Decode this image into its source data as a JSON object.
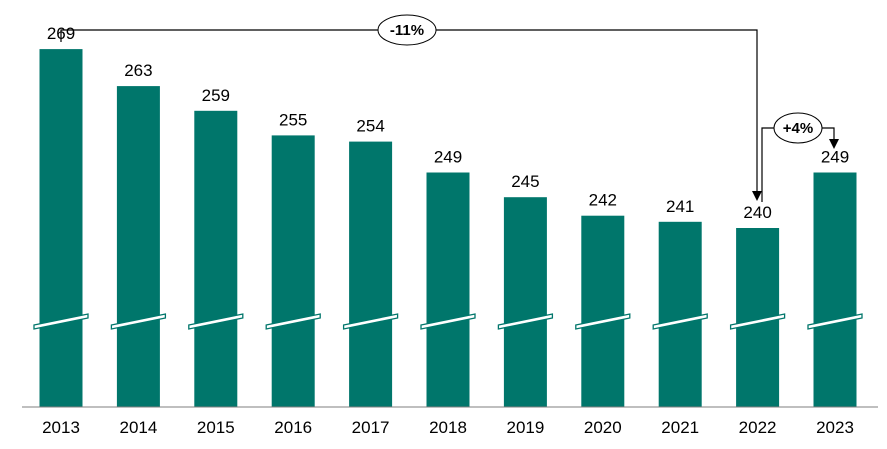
{
  "chart_data": {
    "type": "bar",
    "categories": [
      "2013",
      "2014",
      "2015",
      "2016",
      "2017",
      "2018",
      "2019",
      "2020",
      "2021",
      "2022",
      "2023"
    ],
    "values": [
      269,
      263,
      259,
      255,
      254,
      249,
      245,
      242,
      241,
      240,
      249
    ],
    "axis_break": true,
    "title": "",
    "xlabel": "",
    "ylabel": "",
    "annotations": [
      {
        "label": "-11%",
        "from": "2013",
        "to": "2022"
      },
      {
        "label": "+4%",
        "from": "2022",
        "to": "2023"
      }
    ]
  },
  "colors": {
    "bar": "#00766b",
    "axis": "#7f7f7f",
    "text": "#000000",
    "connector": "#000000",
    "break_mark": "#ffffff"
  }
}
